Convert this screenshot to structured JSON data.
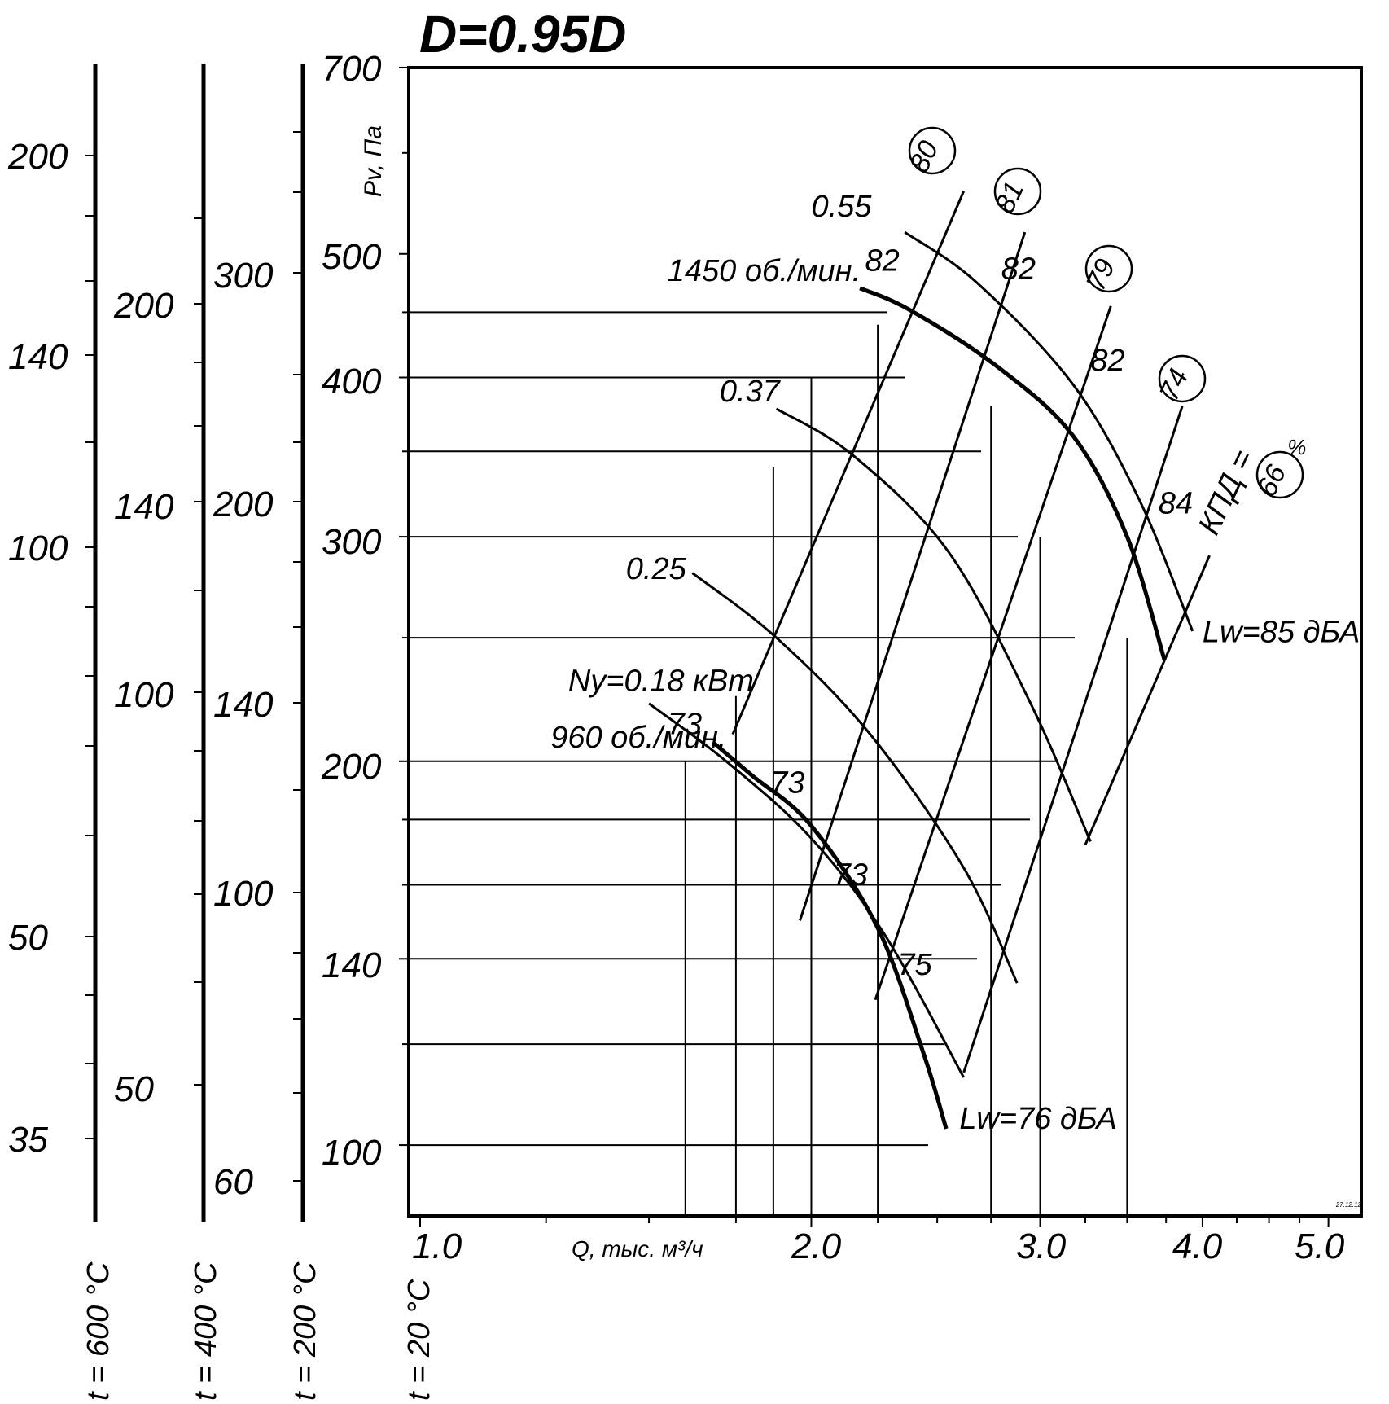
{
  "chart_data": {
    "type": "line",
    "title": "D=0.95D",
    "xlabel": "Q, тыс. м³/ч",
    "ylabel": "Pv, Па",
    "x_scale": "log",
    "y_scale": "log",
    "xlim": [
      0.98,
      5.3
    ],
    "ylim": [
      88,
      700
    ],
    "x_ticks": [
      "1.0",
      "2.0",
      "3.0",
      "4.0",
      "5.0"
    ],
    "y_ticks": [
      "700",
      "500",
      "400",
      "300",
      "200",
      "140",
      "100"
    ],
    "temperature_scales": [
      {
        "label": "t = 600 °C",
        "ticks": [
          "200",
          "140",
          "100",
          "50",
          "35"
        ]
      },
      {
        "label": "t = 400 °C",
        "ticks": [
          "200",
          "140",
          "100",
          "50"
        ]
      },
      {
        "label": "t = 200 °C",
        "ticks": [
          "300",
          "200",
          "140",
          "100",
          "60"
        ]
      },
      {
        "label": "t = 20 °C",
        "ticks": []
      }
    ],
    "series": [
      {
        "name": "1450 об./мин.",
        "x": [
          2.18,
          2.38,
          2.78,
          3.18,
          3.5,
          3.74
        ],
        "y": [
          470,
          452,
          408,
          360,
          300,
          240
        ]
      },
      {
        "name": "960 об./мин.",
        "x": [
          1.68,
          1.8,
          2.0,
          2.25,
          2.44,
          2.54
        ],
        "y": [
          207,
          195,
          178,
          148,
          118,
          103
        ]
      },
      {
        "name": "0.55",
        "x": [
          2.36,
          2.68,
          3.18,
          3.58,
          3.93
        ],
        "y": [
          520,
          475,
          395,
          320,
          253
        ]
      },
      {
        "name": "0.37",
        "x": [
          1.88,
          2.15,
          2.55,
          2.95,
          3.28
        ],
        "y": [
          378,
          348,
          292,
          222,
          173
        ]
      },
      {
        "name": "0.25",
        "x": [
          1.62,
          1.88,
          2.22,
          2.62,
          2.88
        ],
        "y": [
          281,
          250,
          210,
          165,
          134
        ]
      },
      {
        "name": "Ny=0.18 кВт",
        "x": [
          1.5,
          1.72,
          2.0,
          2.28,
          2.62
        ],
        "y": [
          222,
          200,
          174,
          146,
          113
        ]
      },
      {
        "name": "80",
        "x": [
          1.74,
          2.62
        ],
        "y": [
          210,
          560
        ]
      },
      {
        "name": "81",
        "x": [
          1.96,
          2.92
        ],
        "y": [
          150,
          520
        ]
      },
      {
        "name": "79",
        "x": [
          2.24,
          3.4
        ],
        "y": [
          130,
          455
        ]
      },
      {
        "name": "74",
        "x": [
          2.62,
          3.86
        ],
        "y": [
          114,
          380
        ]
      },
      {
        "name": "66",
        "x": [
          3.25,
          4.05
        ],
        "y": [
          172,
          290
        ]
      }
    ],
    "annotations": [
      {
        "text": "0.55",
        "x": 2.0,
        "y": 535
      },
      {
        "text": "0.37",
        "x": 1.7,
        "y": 383
      },
      {
        "text": "0.25",
        "x": 1.44,
        "y": 278
      },
      {
        "text": "Ny=0.18 кВт",
        "x": 1.3,
        "y": 227
      },
      {
        "text": "1450 об./мин.",
        "x": 1.55,
        "y": 476
      },
      {
        "text": "960 об./мин.",
        "x": 1.26,
        "y": 205
      },
      {
        "text": "82",
        "x": 2.2,
        "y": 485
      },
      {
        "text": "82",
        "x": 2.8,
        "y": 478
      },
      {
        "text": "82",
        "x": 3.28,
        "y": 405
      },
      {
        "text": "84",
        "x": 3.7,
        "y": 313
      },
      {
        "text": "73",
        "x": 1.55,
        "y": 210
      },
      {
        "text": "73",
        "x": 1.86,
        "y": 189
      },
      {
        "text": "73",
        "x": 2.08,
        "y": 160
      },
      {
        "text": "75",
        "x": 2.33,
        "y": 136
      },
      {
        "text": "Lw=85 дБА",
        "x": 4.0,
        "y": 248
      },
      {
        "text": "Lw=76 дБА",
        "x": 2.6,
        "y": 103
      },
      {
        "text": "КПД =",
        "x": 4.1,
        "y": 300
      },
      {
        "text": "%",
        "x": 4.65,
        "y": 348
      }
    ],
    "efficiency_circles": [
      "80",
      "81",
      "79",
      "74",
      "66"
    ],
    "grid": true
  },
  "footer_code": "27.12.12"
}
